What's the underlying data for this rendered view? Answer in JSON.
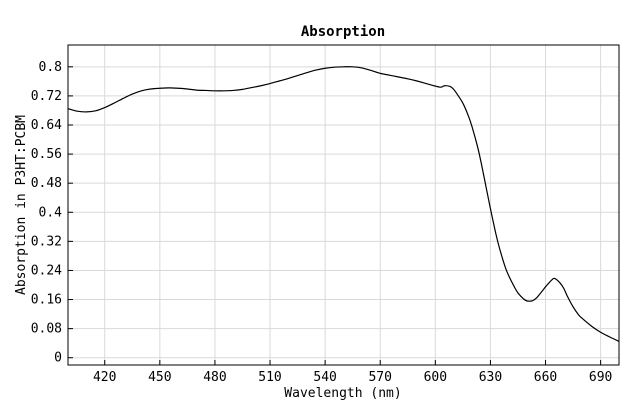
{
  "chart_data": {
    "type": "line",
    "title": "Absorption",
    "xlabel": "Wavelength (nm)",
    "ylabel": "Absorption in P3HT:PCBM",
    "xlim": [
      400,
      700
    ],
    "ylim": [
      -0.02,
      0.86
    ],
    "xticks": [
      420,
      450,
      480,
      510,
      540,
      570,
      600,
      630,
      660,
      690
    ],
    "yticks": [
      0,
      0.08,
      0.16,
      0.24,
      0.32,
      0.4,
      0.48,
      0.56,
      0.64,
      0.72,
      0.8
    ],
    "xtick_labels": [
      "420",
      "450",
      "480",
      "510",
      "540",
      "570",
      "600",
      "630",
      "660",
      "690"
    ],
    "ytick_labels": [
      "0",
      "0.08",
      "0.16",
      "0.24",
      "0.32",
      "0.4",
      "0.48",
      "0.56",
      "0.64",
      "0.72",
      "0.8"
    ],
    "grid": true,
    "line_color": "#000000",
    "series": [
      {
        "x": [
          400,
          405,
          410,
          415,
          420,
          425,
          430,
          435,
          440,
          445,
          450,
          455,
          460,
          465,
          470,
          475,
          480,
          485,
          490,
          495,
          500,
          505,
          510,
          515,
          520,
          525,
          530,
          535,
          540,
          545,
          550,
          555,
          560,
          565,
          570,
          575,
          580,
          585,
          590,
          595,
          600,
          603,
          605,
          608,
          610,
          612,
          615,
          618,
          620,
          623,
          625,
          628,
          630,
          633,
          635,
          638,
          640,
          643,
          645,
          648,
          650,
          653,
          655,
          658,
          660,
          663,
          665,
          668,
          670,
          672,
          675,
          678,
          680,
          685,
          690,
          695,
          700
        ],
        "y": [
          0.685,
          0.678,
          0.676,
          0.679,
          0.688,
          0.7,
          0.713,
          0.725,
          0.734,
          0.739,
          0.741,
          0.742,
          0.741,
          0.739,
          0.736,
          0.735,
          0.734,
          0.734,
          0.735,
          0.738,
          0.743,
          0.748,
          0.754,
          0.761,
          0.768,
          0.776,
          0.784,
          0.791,
          0.796,
          0.799,
          0.8,
          0.8,
          0.797,
          0.79,
          0.782,
          0.777,
          0.772,
          0.767,
          0.761,
          0.754,
          0.747,
          0.744,
          0.748,
          0.746,
          0.738,
          0.724,
          0.7,
          0.665,
          0.635,
          0.58,
          0.535,
          0.46,
          0.41,
          0.34,
          0.3,
          0.25,
          0.225,
          0.195,
          0.178,
          0.162,
          0.156,
          0.157,
          0.164,
          0.182,
          0.195,
          0.212,
          0.218,
          0.205,
          0.19,
          0.168,
          0.14,
          0.118,
          0.108,
          0.087,
          0.07,
          0.057,
          0.045
        ]
      }
    ]
  }
}
